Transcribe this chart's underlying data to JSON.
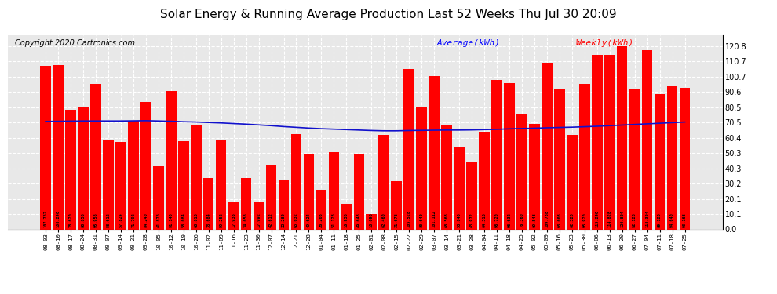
{
  "title": "Solar Energy & Running Average Production Last 52 Weeks Thu Jul 30 20:09",
  "copyright": "Copyright 2020 Cartronics.com",
  "legend_avg": "Average(kWh)",
  "legend_weekly": "Weekly(kWh)",
  "yticks": [
    0.0,
    10.1,
    20.1,
    30.2,
    40.3,
    50.3,
    60.4,
    70.5,
    80.5,
    90.6,
    100.7,
    110.7,
    120.8
  ],
  "ylim_max": 128.0,
  "bar_color": "#ff0000",
  "avg_line_color": "#1111cc",
  "background_color": "#ffffff",
  "plot_bg_color": "#e8e8e8",
  "grid_color": "#ffffff",
  "categories": [
    "08-03",
    "08-10",
    "08-17",
    "08-24",
    "08-31",
    "09-07",
    "09-14",
    "09-21",
    "09-28",
    "10-05",
    "10-12",
    "10-19",
    "10-26",
    "11-02",
    "11-09",
    "11-16",
    "11-23",
    "11-30",
    "12-07",
    "12-14",
    "12-21",
    "12-28",
    "01-04",
    "01-11",
    "01-18",
    "01-25",
    "02-01",
    "02-08",
    "02-15",
    "02-22",
    "02-29",
    "03-07",
    "03-14",
    "03-21",
    "03-28",
    "04-04",
    "04-11",
    "04-18",
    "04-25",
    "05-02",
    "05-09",
    "05-16",
    "05-23",
    "05-30",
    "06-06",
    "06-13",
    "06-20",
    "06-27",
    "07-04",
    "07-11",
    "07-18",
    "07-25"
  ],
  "weekly_values": [
    107.752,
    108.24,
    78.62,
    80.856,
    95.956,
    58.612,
    57.824,
    71.792,
    84.24,
    41.876,
    91.14,
    58.084,
    68.816,
    33.684,
    59.252,
    17.936,
    34.056,
    17.992,
    42.612,
    32.28,
    63.032,
    49.624,
    26.208,
    51.128,
    16.936,
    49.648,
    10.096,
    62.46,
    31.676,
    105.528,
    80.64,
    101.112,
    68.568,
    53.84,
    43.972,
    64.316,
    98.72,
    96.632,
    76.36,
    69.548,
    109.788,
    93.008,
    62.32,
    95.92,
    115.24,
    114.828,
    120.804,
    92.128,
    118.304,
    89.12,
    94.64,
    93.168
  ],
  "avg_values": [
    71.2,
    71.3,
    71.4,
    71.5,
    71.5,
    71.5,
    71.5,
    71.6,
    71.7,
    71.5,
    71.3,
    71.0,
    70.8,
    70.5,
    70.2,
    69.8,
    69.4,
    68.9,
    68.4,
    67.8,
    67.3,
    66.8,
    66.4,
    66.1,
    65.8,
    65.5,
    65.2,
    65.0,
    65.0,
    65.2,
    65.3,
    65.4,
    65.5,
    65.5,
    65.6,
    65.8,
    66.0,
    66.3,
    66.5,
    66.7,
    67.0,
    67.2,
    67.4,
    67.7,
    68.0,
    68.4,
    68.8,
    69.2,
    69.6,
    70.0,
    70.4,
    70.8
  ],
  "title_fontsize": 11,
  "copyright_fontsize": 7,
  "legend_fontsize": 8,
  "tick_fontsize": 7,
  "bar_label_fontsize": 3.8
}
